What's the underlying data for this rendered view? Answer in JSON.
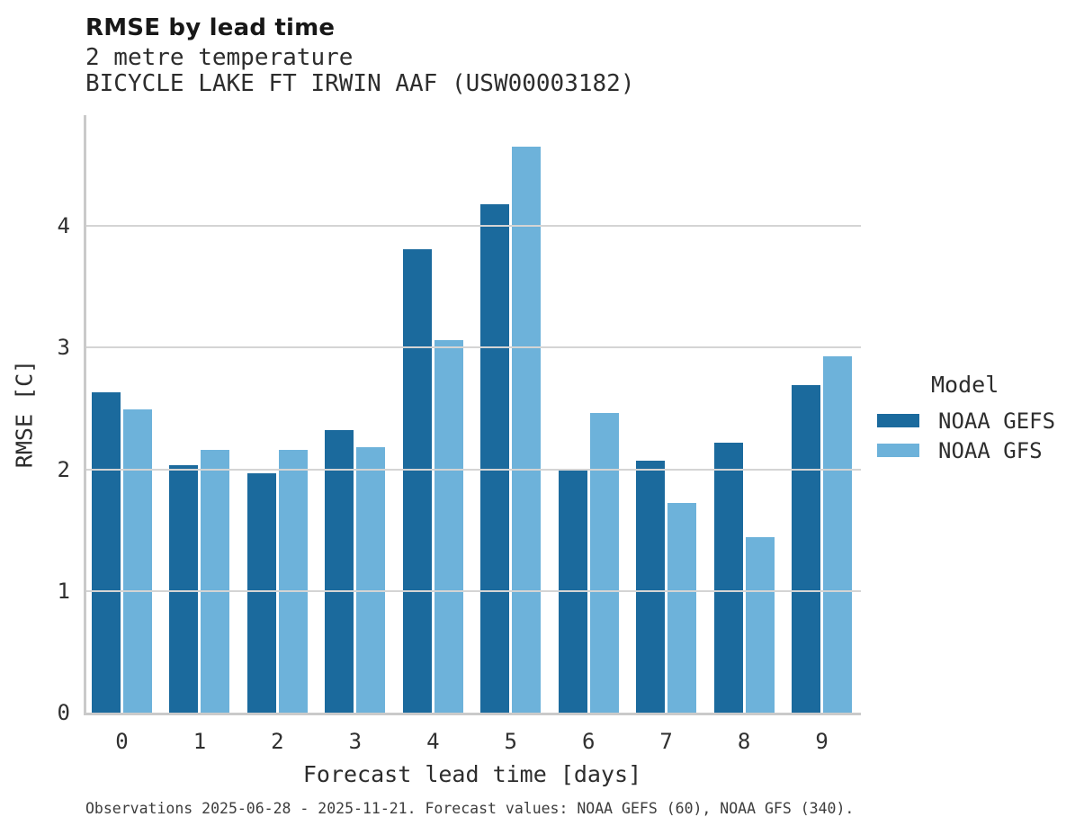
{
  "chart_data": {
    "type": "bar",
    "title": "RMSE by lead time",
    "subtitle": [
      "2 metre temperature",
      "BICYCLE LAKE FT IRWIN AAF (USW00003182)"
    ],
    "xlabel": "Forecast lead time [days]",
    "ylabel": "RMSE [C]",
    "footnote": "Observations 2025-06-28 - 2025-11-21. Forecast values: NOAA GEFS (60), NOAA GFS (340).",
    "categories": [
      0,
      1,
      2,
      3,
      4,
      5,
      6,
      7,
      8,
      9
    ],
    "series": [
      {
        "name": "NOAA GEFS",
        "color": "#1b6a9d",
        "values": [
          2.63,
          2.03,
          1.97,
          2.32,
          3.81,
          4.18,
          1.99,
          2.07,
          2.22,
          2.69
        ]
      },
      {
        "name": "NOAA GFS",
        "color": "#6db2da",
        "values": [
          2.49,
          2.16,
          2.16,
          2.18,
          3.06,
          4.65,
          2.46,
          1.72,
          1.44,
          2.93
        ]
      }
    ],
    "ylim": [
      0,
      4.91
    ],
    "yticks": [
      0,
      1,
      2,
      3,
      4
    ],
    "grid": "horizontal",
    "legend_title": "Model",
    "legend_position": "right",
    "colors": {
      "gridline": "#d4d4d4",
      "spine": "#cacaca",
      "text": "#2d2d2d"
    }
  }
}
